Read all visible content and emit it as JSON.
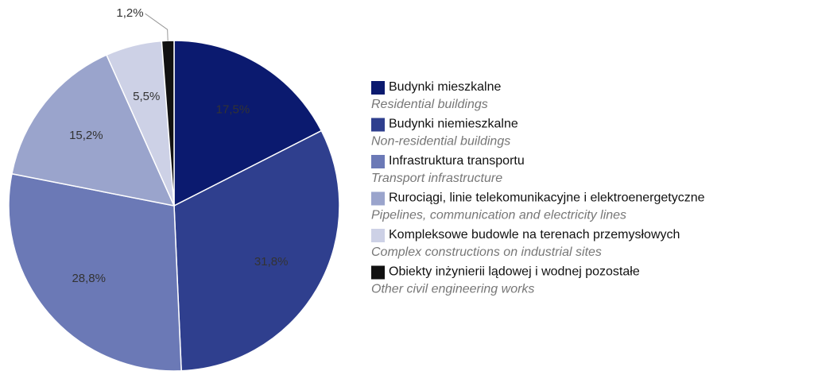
{
  "chart_data": {
    "type": "pie",
    "categories": [
      "Budynki mieszkalne",
      "Budynki niemieszkalne",
      "Infrastruktura transportu",
      "Rurociągi, linie telekomunikacyjne i elektroenergetyczne",
      "Kompleksowe budowle na terenach przemysłowych",
      "Obiekty inżynierii lądowej i wodnej pozostałe"
    ],
    "categories_en": [
      "Residential buildings",
      "Non-residential buildings",
      "Transport infrastructure",
      "Pipelines, communication and electricity lines",
      "Complex constructions on industrial sites",
      "Other civil engineering works"
    ],
    "values": [
      17.5,
      31.8,
      28.8,
      15.2,
      5.5,
      1.2
    ],
    "value_labels": [
      "17,5%",
      "31,8%",
      "28,8%",
      "15,2%",
      "5,5%",
      "1,2%"
    ],
    "colors": [
      "#0b1a6f",
      "#2f3f8e",
      "#6b79b6",
      "#9aa4cc",
      "#cdd1e6",
      "#111111"
    ],
    "legend": "right"
  }
}
